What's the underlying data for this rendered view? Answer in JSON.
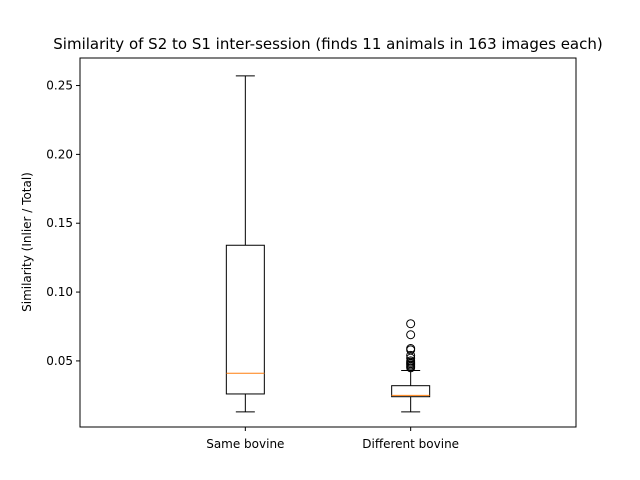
{
  "chart_data": {
    "type": "box",
    "title": "Similarity of S2 to S1 inter-session (finds 11 animals in 163 images each)",
    "xlabel": "",
    "ylabel": "Similarity  (Inlier / Total)",
    "ylim": [
      0.002,
      0.27
    ],
    "yticks": [
      0.05,
      0.1,
      0.15,
      0.2,
      0.25
    ],
    "ytick_labels": [
      "0.05",
      "0.10",
      "0.15",
      "0.20",
      "0.25"
    ],
    "grid": false,
    "categories": [
      "Same bovine",
      "Different bovine"
    ],
    "boxes": [
      {
        "name": "Same bovine",
        "whisker_low": 0.013,
        "q1": 0.026,
        "median": 0.041,
        "q3": 0.134,
        "whisker_high": 0.257,
        "outliers": []
      },
      {
        "name": "Different bovine",
        "whisker_low": 0.013,
        "q1": 0.024,
        "median": 0.025,
        "q3": 0.032,
        "whisker_high": 0.043,
        "outliers": [
          0.045,
          0.046,
          0.047,
          0.048,
          0.049,
          0.05,
          0.052,
          0.054,
          0.058,
          0.059,
          0.069,
          0.077
        ]
      }
    ],
    "colors": {
      "box": "#000000",
      "median": "#ff7f0e",
      "flier": "#000000",
      "background": "#ffffff"
    }
  }
}
